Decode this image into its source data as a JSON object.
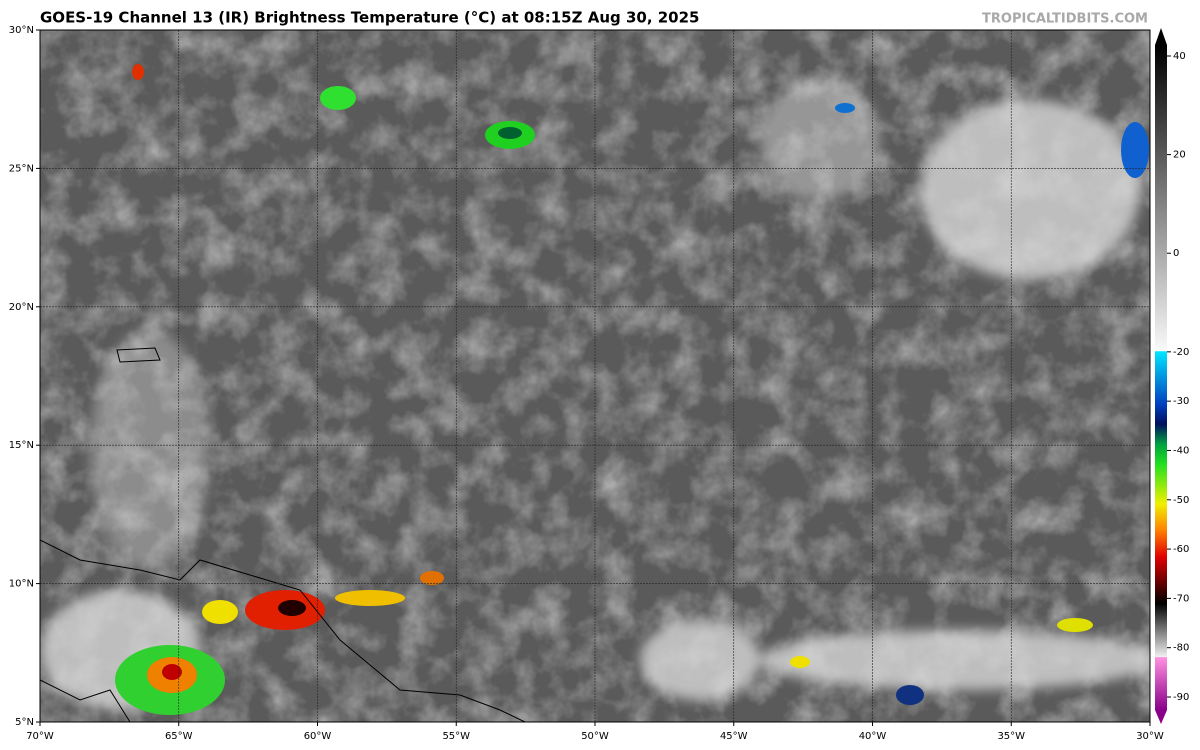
{
  "header": {
    "title": "GOES-19 Channel 13 (IR) Brightness Temperature (°C) at 08:15Z Aug 30, 2025",
    "watermark": "TROPICALTIDBITS.COM"
  },
  "map": {
    "lat_labels": [
      "30°N",
      "25°N",
      "20°N",
      "15°N",
      "10°N",
      "5°N"
    ],
    "lon_labels": [
      "70°W",
      "65°W",
      "60°W",
      "55°W",
      "50°W",
      "45°W",
      "40°W",
      "35°W",
      "30°W"
    ]
  },
  "colorbar": {
    "range": [
      -90,
      40
    ],
    "ticks": [
      40,
      20,
      0,
      -20,
      -30,
      -40,
      -50,
      -60,
      -70,
      -80,
      -90
    ]
  }
}
